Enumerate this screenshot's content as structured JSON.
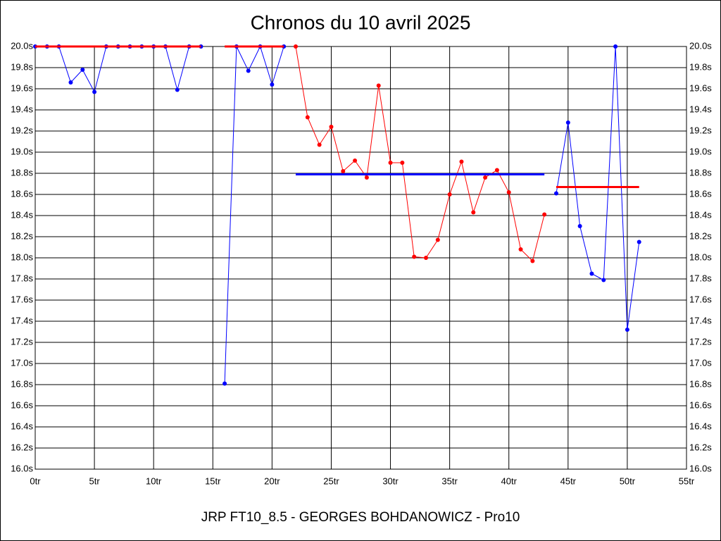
{
  "chart_data": {
    "type": "line",
    "title": "Chronos du 10 avril 2025",
    "xlabel": "JRP FT10_8.5 - GEORGES BOHDANOWICZ - Pro10",
    "xlim": [
      0,
      55
    ],
    "ylim": [
      16,
      20
    ],
    "grid": true,
    "xticks": [
      {
        "value": 0,
        "label": "0tr"
      },
      {
        "value": 5,
        "label": "5tr"
      },
      {
        "value": 10,
        "label": "10tr"
      },
      {
        "value": 15,
        "label": "15tr"
      },
      {
        "value": 20,
        "label": "20tr"
      },
      {
        "value": 25,
        "label": "25tr"
      },
      {
        "value": 30,
        "label": "30tr"
      },
      {
        "value": 35,
        "label": "35tr"
      },
      {
        "value": 40,
        "label": "40tr"
      },
      {
        "value": 45,
        "label": "45tr"
      },
      {
        "value": 50,
        "label": "50tr"
      },
      {
        "value": 55,
        "label": "55tr"
      }
    ],
    "yticks": [
      {
        "value": 16,
        "label": "16.0s"
      },
      {
        "value": 16.2,
        "label": "16.2s"
      },
      {
        "value": 16.4,
        "label": "16.4s"
      },
      {
        "value": 16.6,
        "label": "16.6s"
      },
      {
        "value": 16.8,
        "label": "16.8s"
      },
      {
        "value": 17,
        "label": "17.0s"
      },
      {
        "value": 17.2,
        "label": "17.2s"
      },
      {
        "value": 17.4,
        "label": "17.4s"
      },
      {
        "value": 17.6,
        "label": "17.6s"
      },
      {
        "value": 17.8,
        "label": "17.8s"
      },
      {
        "value": 18,
        "label": "18.0s"
      },
      {
        "value": 18.2,
        "label": "18.2s"
      },
      {
        "value": 18.4,
        "label": "18.4s"
      },
      {
        "value": 18.6,
        "label": "18.6s"
      },
      {
        "value": 18.8,
        "label": "18.8s"
      },
      {
        "value": 19,
        "label": "19.0s"
      },
      {
        "value": 19.2,
        "label": "19.2s"
      },
      {
        "value": 19.4,
        "label": "19.4s"
      },
      {
        "value": 19.6,
        "label": "19.6s"
      },
      {
        "value": 19.8,
        "label": "19.8s"
      },
      {
        "value": 20,
        "label": "20.0s"
      }
    ],
    "series": [
      {
        "color": "#0000ff",
        "markers": true,
        "x": [
          0,
          1,
          2,
          3,
          4,
          5,
          6,
          7,
          8,
          9,
          10,
          11,
          12,
          13,
          14
        ],
        "values": [
          20,
          20,
          20,
          19.66,
          19.78,
          19.57,
          20,
          20,
          20,
          20,
          20,
          20,
          19.59,
          20,
          20
        ]
      },
      {
        "color": "#ff0000",
        "markers": false,
        "x": [
          0,
          14
        ],
        "values": [
          20,
          20
        ]
      },
      {
        "color": "#0000ff",
        "markers": true,
        "x": [
          16,
          17,
          18,
          19,
          20,
          21
        ],
        "values": [
          16.81,
          20,
          19.77,
          20,
          19.64,
          20
        ]
      },
      {
        "color": "#ff0000",
        "markers": false,
        "x": [
          16,
          21
        ],
        "values": [
          20,
          20
        ]
      },
      {
        "color": "#ff0000",
        "markers": true,
        "x": [
          22,
          23,
          24,
          25,
          26,
          27,
          28,
          29,
          30,
          31,
          32,
          33,
          34,
          35,
          36,
          37,
          38,
          39,
          40,
          41,
          42,
          43
        ],
        "values": [
          20,
          19.33,
          19.07,
          19.24,
          18.82,
          18.92,
          18.76,
          19.63,
          18.9,
          18.9,
          18.01,
          18,
          18.17,
          18.6,
          18.91,
          18.43,
          18.76,
          18.83,
          18.62,
          18.08,
          17.97,
          18.41
        ]
      },
      {
        "color": "#0000ff",
        "markers": false,
        "x": [
          22,
          43
        ],
        "values": [
          18.79,
          18.79
        ]
      },
      {
        "color": "#0000ff",
        "markers": true,
        "x": [
          44,
          45,
          46,
          47,
          48,
          49,
          50,
          51
        ],
        "values": [
          18.61,
          19.28,
          18.3,
          17.85,
          17.79,
          20,
          17.32,
          18.15
        ]
      },
      {
        "color": "#ff0000",
        "markers": false,
        "x": [
          44,
          51
        ],
        "values": [
          18.67,
          18.67
        ]
      }
    ]
  }
}
